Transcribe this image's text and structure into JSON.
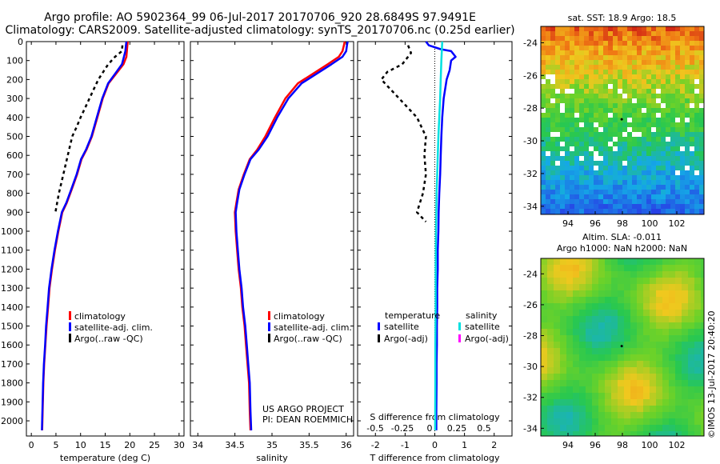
{
  "header": {
    "line1": "Argo profile: AO 5902364_99 06-Jul-2017 20170706_920 28.6849S 97.9491E",
    "line2": "Climatology: CARS2009. Satellite-adjusted climatology: synTS_20170706.nc (0.25d earlier)"
  },
  "right": {
    "sst_title": "sat. SST: 18.9 Argo: 18.5",
    "sla_title1": "Altim. SLA: -0.011",
    "sla_title2": "Argo h1000: NaN h2000: NaN",
    "lon_ticks": [
      94,
      96,
      98,
      100,
      102
    ],
    "lat_ticks": [
      -24,
      -26,
      -28,
      -30,
      -32,
      -34
    ],
    "watermark": "©IMOS 13-Jul-2017 20:40:20"
  },
  "chart_data": [
    {
      "type": "line",
      "xlabel": "temperature (deg C)",
      "xlim": [
        -1,
        31
      ],
      "xticks": [
        0,
        5,
        10,
        15,
        20,
        25,
        30
      ],
      "ylim": [
        2080,
        0
      ],
      "yticks": [
        0,
        100,
        200,
        300,
        400,
        500,
        600,
        700,
        800,
        900,
        1000,
        1100,
        1200,
        1300,
        1400,
        1500,
        1600,
        1700,
        1800,
        1900,
        2000
      ],
      "legend": [
        "climatology",
        "satellite-adj. clim.",
        "Argo(..raw -QC)"
      ],
      "series": [
        {
          "name": "climatology",
          "color": "#ff0000",
          "x": [
            19.6,
            19.5,
            19.4,
            19.3,
            18.7,
            17.2,
            15.7,
            14.5,
            13.4,
            12.3,
            11.2,
            10.2,
            9.3,
            8.2,
            7.2,
            6.3,
            5.5,
            4.8,
            4.2,
            3.7,
            3.4,
            3.1,
            2.85,
            2.6,
            2.45,
            2.3,
            2.2
          ],
          "y": [
            0,
            20,
            50,
            80,
            120,
            170,
            220,
            300,
            400,
            500,
            570,
            620,
            700,
            780,
            850,
            900,
            1000,
            1100,
            1200,
            1300,
            1400,
            1500,
            1600,
            1700,
            1800,
            1950,
            2050
          ]
        },
        {
          "name": "satellite-adj. clim.",
          "color": "#0000ff",
          "x": [
            19.3,
            19.2,
            19.1,
            18.8,
            18.4,
            17.0,
            15.6,
            14.4,
            13.3,
            12.2,
            11.1,
            10.1,
            9.2,
            8.1,
            7.1,
            6.2,
            5.4,
            4.7,
            4.1,
            3.6,
            3.3,
            3.0,
            2.8,
            2.55,
            2.4,
            2.25,
            2.15
          ],
          "y": [
            0,
            20,
            50,
            80,
            120,
            170,
            220,
            300,
            400,
            500,
            570,
            620,
            700,
            780,
            850,
            900,
            1000,
            1100,
            1200,
            1300,
            1400,
            1500,
            1600,
            1700,
            1800,
            1950,
            2050
          ]
        },
        {
          "name": "Argo(..raw -QC)",
          "color": "#000000",
          "x": [
            18.5,
            18.4,
            17.0,
            15.6,
            14.6,
            13.6,
            12.7,
            11.8,
            10.9,
            10.0,
            9.2,
            8.3,
            7.4,
            6.5,
            5.6,
            4.9
          ],
          "y": [
            20,
            50,
            80,
            120,
            160,
            200,
            250,
            300,
            350,
            400,
            450,
            500,
            600,
            700,
            800,
            900
          ]
        }
      ]
    },
    {
      "type": "line",
      "xlabel": "salinity",
      "xlim": [
        33.9,
        36.1
      ],
      "xticks": [
        34,
        34.5,
        35,
        35.5,
        36
      ],
      "xticklabels": [
        "34",
        "34.5",
        "35",
        "35.5",
        "36"
      ],
      "ylim": [
        2080,
        0
      ],
      "legend": [
        "climatology",
        "satellite-adj. clim.",
        "Argo(..raw -QC)"
      ],
      "annotation": [
        "US ARGO PROJECT",
        "PI: DEAN ROEMMICH"
      ],
      "series": [
        {
          "name": "climatology",
          "color": "#ff0000",
          "x": [
            35.98,
            35.97,
            35.95,
            35.9,
            35.75,
            35.55,
            35.35,
            35.18,
            35.04,
            34.91,
            34.8,
            34.7,
            34.62,
            34.55,
            34.52,
            34.5,
            34.51,
            34.53,
            34.55,
            34.58,
            34.6,
            34.63,
            34.65,
            34.67,
            34.69,
            34.7,
            34.71
          ],
          "y": [
            0,
            20,
            50,
            80,
            120,
            170,
            220,
            300,
            400,
            500,
            570,
            620,
            700,
            780,
            850,
            900,
            1000,
            1100,
            1200,
            1300,
            1400,
            1500,
            1600,
            1700,
            1800,
            1950,
            2050
          ]
        },
        {
          "name": "satellite-adj. clim.",
          "color": "#0000ff",
          "x": [
            36.02,
            36.01,
            36.0,
            35.95,
            35.8,
            35.6,
            35.4,
            35.22,
            35.07,
            34.94,
            34.82,
            34.71,
            34.63,
            34.56,
            34.53,
            34.51,
            34.52,
            34.54,
            34.56,
            34.59,
            34.61,
            34.64,
            34.66,
            34.68,
            34.7,
            34.71,
            34.72
          ],
          "y": [
            0,
            20,
            50,
            80,
            120,
            170,
            220,
            300,
            400,
            500,
            570,
            620,
            700,
            780,
            850,
            900,
            1000,
            1100,
            1200,
            1300,
            1400,
            1500,
            1600,
            1700,
            1800,
            1950,
            2050
          ]
        }
      ]
    },
    {
      "type": "line",
      "xlabel": "T difference from climatology",
      "xlabel2": "S difference from climatology",
      "xlim": [
        -2.6,
        2.6
      ],
      "xticks": [
        -2,
        -1,
        0,
        1,
        2
      ],
      "xticklabels_top": [
        "-0.5",
        "-0.25",
        "0",
        "0.25",
        "0.5"
      ],
      "ylim": [
        2080,
        0
      ],
      "legend_titles": [
        "temperature",
        "salinity"
      ],
      "legend": [
        "satellite",
        "Argo(-adj)",
        "satellite",
        "Argo(-adj)"
      ],
      "series": [
        {
          "name": "satellite",
          "color": "#0000ff",
          "x": [
            -0.3,
            -0.2,
            0.2,
            0.55,
            0.7,
            0.55,
            0.5,
            0.4,
            0.3,
            0.25,
            0.22,
            0.2,
            0.18,
            0.15,
            0.13,
            0.12,
            0.1,
            0.1,
            0.08,
            0.08,
            0.07,
            0.07,
            0.06,
            0.06,
            0.05,
            0.05
          ],
          "y": [
            0,
            20,
            40,
            50,
            80,
            100,
            150,
            200,
            300,
            400,
            500,
            600,
            700,
            800,
            900,
            1000,
            1100,
            1200,
            1300,
            1400,
            1500,
            1600,
            1700,
            1800,
            1950,
            2050
          ]
        },
        {
          "name": "satellite",
          "color": "#00e0e0",
          "x": [
            0.25,
            0.22,
            0.2,
            0.18,
            0.15,
            0.12,
            0.1,
            0.08,
            0.06,
            0.05,
            0.04,
            0.03,
            0.03,
            0.02,
            0.02,
            0.01
          ],
          "y": [
            0,
            100,
            200,
            300,
            400,
            500,
            600,
            700,
            800,
            900,
            1000,
            1200,
            1400,
            1600,
            1800,
            2050
          ]
        },
        {
          "name": "Argo(-adj)",
          "color": "#000000",
          "x": [
            -0.9,
            -0.8,
            -1.1,
            -1.6,
            -1.8,
            -1.5,
            -1.2,
            -0.9,
            -0.6,
            -0.3,
            -0.35,
            -0.3,
            -0.4,
            -0.6,
            -0.3
          ],
          "y": [
            20,
            60,
            120,
            160,
            200,
            250,
            300,
            350,
            400,
            500,
            600,
            700,
            800,
            900,
            950
          ]
        }
      ]
    }
  ]
}
